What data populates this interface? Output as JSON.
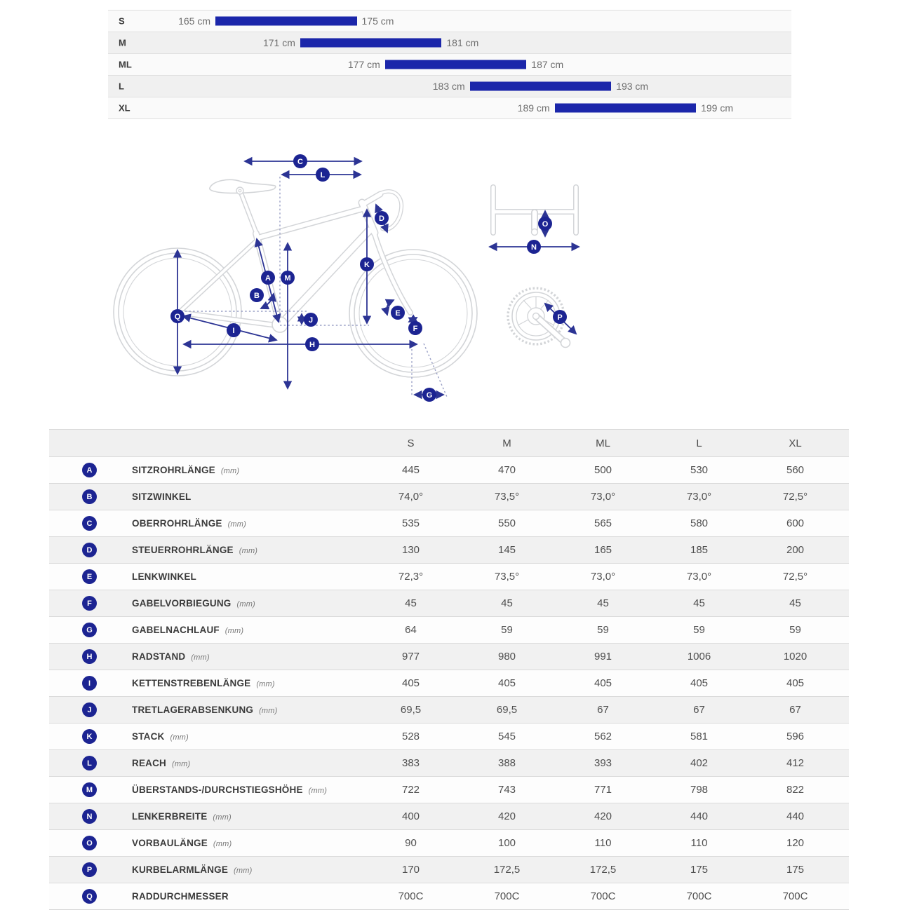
{
  "colors": {
    "bar_blue": "#1b26aa",
    "badge_navy": "#1c2492",
    "arrow_navy": "#2c3494",
    "bike_line_gray": "#d3d5d8",
    "row_alt_gray": "#f1f1f1",
    "text_gray": "#6e6e6e",
    "label_dark": "#3b3b3b"
  },
  "chart_data": [
    {
      "type": "bar",
      "name": "rider-height-ranges",
      "orientation": "horizontal-range",
      "unit": "cm",
      "categories": [
        "S",
        "M",
        "ML",
        "L",
        "XL"
      ],
      "ranges": [
        [
          165,
          175
        ],
        [
          171,
          181
        ],
        [
          177,
          187
        ],
        [
          183,
          193
        ],
        [
          189,
          199
        ]
      ],
      "labels": [
        [
          "165 cm",
          "175 cm"
        ],
        [
          "171 cm",
          "181 cm"
        ],
        [
          "177 cm",
          "187 cm"
        ],
        [
          "183 cm",
          "193 cm"
        ],
        [
          "189 cm",
          "199 cm"
        ]
      ],
      "xlim": [
        165,
        199
      ],
      "grid": false,
      "legend": false
    },
    {
      "type": "table",
      "name": "frame-geometry",
      "columns": [
        "S",
        "M",
        "ML",
        "L",
        "XL"
      ],
      "rows": [
        {
          "key": "A",
          "label": "SITZROHRLÄNGE",
          "unit": "(mm)",
          "values": [
            "445",
            "470",
            "500",
            "530",
            "560"
          ]
        },
        {
          "key": "B",
          "label": "SITZWINKEL",
          "unit": "",
          "values": [
            "74,0°",
            "73,5°",
            "73,0°",
            "73,0°",
            "72,5°"
          ]
        },
        {
          "key": "C",
          "label": "OBERROHRLÄNGE",
          "unit": "(mm)",
          "values": [
            "535",
            "550",
            "565",
            "580",
            "600"
          ]
        },
        {
          "key": "D",
          "label": "STEUERROHRLÄNGE",
          "unit": "(mm)",
          "values": [
            "130",
            "145",
            "165",
            "185",
            "200"
          ]
        },
        {
          "key": "E",
          "label": "LENKWINKEL",
          "unit": "",
          "values": [
            "72,3°",
            "73,5°",
            "73,0°",
            "73,0°",
            "72,5°"
          ]
        },
        {
          "key": "F",
          "label": "GABELVORBIEGUNG",
          "unit": "(mm)",
          "values": [
            "45",
            "45",
            "45",
            "45",
            "45"
          ]
        },
        {
          "key": "G",
          "label": "GABELNACHLAUF",
          "unit": "(mm)",
          "values": [
            "64",
            "59",
            "59",
            "59",
            "59"
          ]
        },
        {
          "key": "H",
          "label": "RADSTAND",
          "unit": "(mm)",
          "values": [
            "977",
            "980",
            "991",
            "1006",
            "1020"
          ]
        },
        {
          "key": "I",
          "label": "KETTENSTREBENLÄNGE",
          "unit": "(mm)",
          "values": [
            "405",
            "405",
            "405",
            "405",
            "405"
          ]
        },
        {
          "key": "J",
          "label": "TRETLAGERABSENKUNG",
          "unit": "(mm)",
          "values": [
            "69,5",
            "69,5",
            "67",
            "67",
            "67"
          ]
        },
        {
          "key": "K",
          "label": "STACK",
          "unit": "(mm)",
          "values": [
            "528",
            "545",
            "562",
            "581",
            "596"
          ]
        },
        {
          "key": "L",
          "label": "REACH",
          "unit": "(mm)",
          "values": [
            "383",
            "388",
            "393",
            "402",
            "412"
          ]
        },
        {
          "key": "M",
          "label": "ÜBERSTANDS-/DURCHSTIEGSHÖHE",
          "unit": "(mm)",
          "values": [
            "722",
            "743",
            "771",
            "798",
            "822"
          ]
        },
        {
          "key": "N",
          "label": "LENKERBREITE",
          "unit": "(mm)",
          "values": [
            "400",
            "420",
            "420",
            "440",
            "440"
          ]
        },
        {
          "key": "O",
          "label": "VORBAULÄNGE",
          "unit": "(mm)",
          "values": [
            "90",
            "100",
            "110",
            "110",
            "120"
          ]
        },
        {
          "key": "P",
          "label": "KURBELARMLÄNGE",
          "unit": "(mm)",
          "values": [
            "170",
            "172,5",
            "172,5",
            "175",
            "175"
          ]
        },
        {
          "key": "Q",
          "label": "RADDURCHMESSER",
          "unit": "",
          "values": [
            "700C",
            "700C",
            "700C",
            "700C",
            "700C"
          ]
        }
      ]
    }
  ],
  "diagram": {
    "badges": [
      "A",
      "B",
      "C",
      "D",
      "E",
      "F",
      "G",
      "H",
      "I",
      "J",
      "K",
      "L",
      "M",
      "N",
      "O",
      "P",
      "Q"
    ]
  }
}
